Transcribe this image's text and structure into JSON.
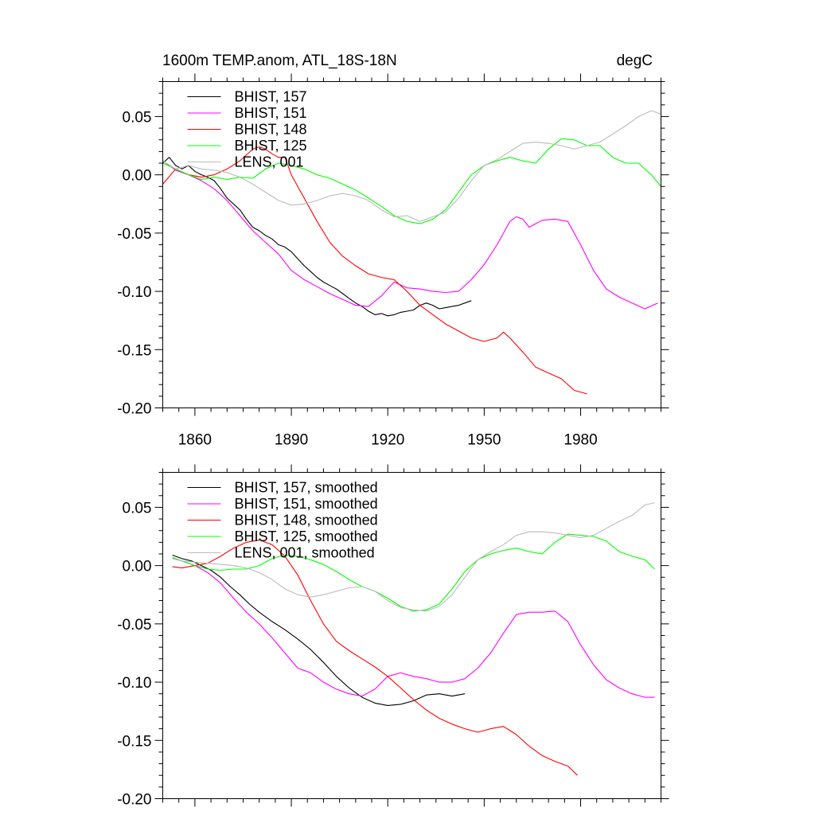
{
  "chart_data": [
    {
      "type": "line",
      "title": "1600m TEMP.anom, ATL_18S-18N",
      "units": "degC",
      "xlim": [
        1850,
        2005
      ],
      "ylim": [
        -0.2,
        0.08
      ],
      "xticks": [
        1860,
        1890,
        1920,
        1950,
        1980
      ],
      "xtick_labels": [
        "1860",
        "1890",
        "1920",
        "1950",
        "1980"
      ],
      "yticks": [
        -0.2,
        -0.15,
        -0.1,
        -0.05,
        0.0,
        0.05
      ],
      "ytick_labels": [
        "-0.20",
        "-0.15",
        "-0.10",
        "-0.05",
        "0.00",
        "0.05"
      ],
      "legend_position": "top-left",
      "series": [
        {
          "name": "BHIST, 157",
          "color": "#000000",
          "x": [
            1850,
            1852,
            1854,
            1856,
            1858,
            1860,
            1862,
            1864,
            1866,
            1868,
            1870,
            1872,
            1874,
            1876,
            1878,
            1880,
            1882,
            1884,
            1886,
            1888,
            1890,
            1892,
            1894,
            1896,
            1898,
            1900,
            1902,
            1904,
            1906,
            1908,
            1910,
            1912,
            1914,
            1916,
            1918,
            1920,
            1922,
            1924,
            1926,
            1928,
            1930,
            1932,
            1934,
            1936,
            1938,
            1940,
            1942,
            1944,
            1946
          ],
          "y": [
            0.01,
            0.015,
            0.008,
            0.005,
            0.008,
            0.003,
            0.0,
            -0.002,
            -0.005,
            -0.012,
            -0.02,
            -0.025,
            -0.03,
            -0.038,
            -0.045,
            -0.048,
            -0.052,
            -0.055,
            -0.06,
            -0.062,
            -0.066,
            -0.072,
            -0.078,
            -0.083,
            -0.088,
            -0.092,
            -0.095,
            -0.098,
            -0.102,
            -0.106,
            -0.11,
            -0.113,
            -0.117,
            -0.12,
            -0.119,
            -0.121,
            -0.12,
            -0.118,
            -0.117,
            -0.116,
            -0.112,
            -0.11,
            -0.112,
            -0.115,
            -0.114,
            -0.113,
            -0.112,
            -0.11,
            -0.108
          ]
        },
        {
          "name": "BHIST, 151",
          "color": "#FF00FF",
          "x": [
            1850,
            1854,
            1858,
            1862,
            1866,
            1870,
            1874,
            1878,
            1882,
            1886,
            1890,
            1894,
            1898,
            1902,
            1906,
            1910,
            1914,
            1918,
            1922,
            1926,
            1930,
            1934,
            1938,
            1942,
            1946,
            1950,
            1954,
            1958,
            1960,
            1962,
            1964,
            1966,
            1968,
            1972,
            1976,
            1980,
            1984,
            1988,
            1992,
            1996,
            2000,
            2004
          ],
          "y": [
            0.012,
            0.004,
            0.0,
            -0.005,
            -0.012,
            -0.022,
            -0.035,
            -0.048,
            -0.058,
            -0.068,
            -0.082,
            -0.09,
            -0.096,
            -0.102,
            -0.107,
            -0.112,
            -0.113,
            -0.104,
            -0.092,
            -0.097,
            -0.098,
            -0.1,
            -0.101,
            -0.1,
            -0.09,
            -0.077,
            -0.06,
            -0.04,
            -0.036,
            -0.038,
            -0.045,
            -0.042,
            -0.039,
            -0.038,
            -0.04,
            -0.06,
            -0.082,
            -0.098,
            -0.105,
            -0.11,
            -0.115,
            -0.11
          ]
        },
        {
          "name": "BHIST, 148",
          "color": "#FF0000",
          "x": [
            1850,
            1854,
            1858,
            1862,
            1866,
            1870,
            1874,
            1878,
            1880,
            1882,
            1884,
            1886,
            1888,
            1890,
            1894,
            1898,
            1902,
            1906,
            1910,
            1914,
            1918,
            1922,
            1926,
            1930,
            1934,
            1938,
            1942,
            1946,
            1950,
            1954,
            1956,
            1958,
            1962,
            1966,
            1970,
            1974,
            1978,
            1982
          ],
          "y": [
            -0.008,
            0.005,
            0.0,
            -0.002,
            0.0,
            0.005,
            0.012,
            0.022,
            0.024,
            0.022,
            0.018,
            0.015,
            0.015,
            0.0,
            -0.02,
            -0.04,
            -0.058,
            -0.07,
            -0.078,
            -0.085,
            -0.088,
            -0.09,
            -0.1,
            -0.112,
            -0.12,
            -0.128,
            -0.134,
            -0.14,
            -0.143,
            -0.14,
            -0.135,
            -0.14,
            -0.152,
            -0.165,
            -0.17,
            -0.175,
            -0.185,
            -0.188
          ]
        },
        {
          "name": "BHIST, 125",
          "color": "#00FF00",
          "x": [
            1850,
            1854,
            1858,
            1862,
            1866,
            1870,
            1874,
            1878,
            1882,
            1886,
            1890,
            1894,
            1898,
            1902,
            1906,
            1910,
            1914,
            1918,
            1922,
            1926,
            1930,
            1934,
            1938,
            1942,
            1946,
            1950,
            1954,
            1958,
            1962,
            1966,
            1970,
            1974,
            1978,
            1982,
            1986,
            1990,
            1994,
            1998,
            2002,
            2005
          ],
          "y": [
            0.01,
            0.005,
            0.0,
            -0.004,
            -0.002,
            -0.004,
            -0.002,
            -0.003,
            0.005,
            0.01,
            0.008,
            0.005,
            0.0,
            -0.003,
            -0.008,
            -0.013,
            -0.02,
            -0.027,
            -0.035,
            -0.04,
            -0.042,
            -0.038,
            -0.03,
            -0.015,
            0.0,
            0.008,
            0.012,
            0.015,
            0.012,
            0.01,
            0.022,
            0.031,
            0.03,
            0.025,
            0.025,
            0.015,
            0.01,
            0.01,
            0.0,
            -0.01
          ]
        },
        {
          "name": "LENS, 001",
          "color": "#BBBBBB",
          "x": [
            1850,
            1854,
            1858,
            1862,
            1866,
            1870,
            1874,
            1878,
            1882,
            1886,
            1890,
            1894,
            1898,
            1902,
            1906,
            1910,
            1914,
            1918,
            1922,
            1926,
            1930,
            1934,
            1938,
            1942,
            1946,
            1950,
            1954,
            1958,
            1962,
            1966,
            1970,
            1974,
            1978,
            1982,
            1986,
            1990,
            1994,
            1998,
            2002,
            2005
          ],
          "y": [
            0.012,
            0.005,
            0.008,
            0.005,
            0.004,
            0.002,
            -0.002,
            -0.008,
            -0.015,
            -0.022,
            -0.026,
            -0.025,
            -0.022,
            -0.018,
            -0.016,
            -0.018,
            -0.022,
            -0.03,
            -0.036,
            -0.035,
            -0.04,
            -0.036,
            -0.032,
            -0.02,
            -0.005,
            0.008,
            0.013,
            0.02,
            0.027,
            0.028,
            0.027,
            0.025,
            0.022,
            0.025,
            0.028,
            0.035,
            0.042,
            0.05,
            0.055,
            0.052
          ]
        }
      ]
    },
    {
      "type": "line",
      "xlim": [
        1850,
        2005
      ],
      "ylim": [
        -0.2,
        0.08
      ],
      "xticks": [
        1860,
        1890,
        1920,
        1950,
        1980
      ],
      "yticks": [
        -0.2,
        -0.15,
        -0.1,
        -0.05,
        0.0,
        0.05
      ],
      "ytick_labels": [
        "-0.20",
        "-0.15",
        "-0.10",
        "-0.05",
        "0.00",
        "0.05"
      ],
      "legend_position": "top-left",
      "series": [
        {
          "name": "BHIST, 157, smoothed",
          "color": "#000000",
          "x": [
            1853,
            1856,
            1859,
            1862,
            1865,
            1868,
            1871,
            1874,
            1877,
            1880,
            1884,
            1888,
            1892,
            1896,
            1900,
            1904,
            1908,
            1912,
            1916,
            1920,
            1924,
            1928,
            1932,
            1936,
            1940,
            1944
          ],
          "y": [
            0.009,
            0.006,
            0.004,
            0.0,
            -0.004,
            -0.01,
            -0.018,
            -0.025,
            -0.033,
            -0.04,
            -0.048,
            -0.055,
            -0.063,
            -0.072,
            -0.083,
            -0.095,
            -0.105,
            -0.113,
            -0.118,
            -0.12,
            -0.119,
            -0.116,
            -0.111,
            -0.11,
            -0.112,
            -0.11
          ]
        },
        {
          "name": "BHIST, 151, smoothed",
          "color": "#FF00FF",
          "x": [
            1853,
            1856,
            1860,
            1864,
            1868,
            1872,
            1876,
            1880,
            1884,
            1888,
            1892,
            1896,
            1900,
            1904,
            1908,
            1912,
            1916,
            1920,
            1924,
            1928,
            1932,
            1936,
            1940,
            1944,
            1948,
            1952,
            1956,
            1960,
            1964,
            1968,
            1972,
            1976,
            1980,
            1984,
            1988,
            1992,
            1996,
            2000,
            2003
          ],
          "y": [
            0.006,
            0.004,
            0.0,
            -0.006,
            -0.015,
            -0.028,
            -0.04,
            -0.05,
            -0.062,
            -0.075,
            -0.088,
            -0.092,
            -0.1,
            -0.106,
            -0.11,
            -0.112,
            -0.106,
            -0.095,
            -0.092,
            -0.095,
            -0.097,
            -0.1,
            -0.1,
            -0.097,
            -0.088,
            -0.075,
            -0.058,
            -0.042,
            -0.04,
            -0.04,
            -0.039,
            -0.048,
            -0.068,
            -0.085,
            -0.098,
            -0.105,
            -0.11,
            -0.113,
            -0.113
          ]
        },
        {
          "name": "BHIST, 148, smoothed",
          "color": "#FF0000",
          "x": [
            1853,
            1856,
            1860,
            1864,
            1868,
            1872,
            1876,
            1880,
            1884,
            1888,
            1892,
            1896,
            1900,
            1904,
            1908,
            1912,
            1916,
            1920,
            1924,
            1928,
            1932,
            1936,
            1940,
            1944,
            1948,
            1952,
            1956,
            1960,
            1964,
            1968,
            1972,
            1976,
            1979
          ],
          "y": [
            -0.001,
            -0.002,
            0.0,
            0.002,
            0.008,
            0.015,
            0.02,
            0.022,
            0.018,
            0.008,
            -0.008,
            -0.03,
            -0.05,
            -0.065,
            -0.073,
            -0.08,
            -0.087,
            -0.095,
            -0.105,
            -0.115,
            -0.124,
            -0.131,
            -0.136,
            -0.14,
            -0.143,
            -0.14,
            -0.138,
            -0.145,
            -0.155,
            -0.163,
            -0.168,
            -0.172,
            -0.18
          ]
        },
        {
          "name": "BHIST, 125, smoothed",
          "color": "#00FF00",
          "x": [
            1853,
            1856,
            1860,
            1864,
            1868,
            1872,
            1876,
            1880,
            1884,
            1888,
            1892,
            1896,
            1900,
            1904,
            1908,
            1912,
            1916,
            1920,
            1924,
            1928,
            1932,
            1936,
            1940,
            1944,
            1948,
            1952,
            1956,
            1960,
            1964,
            1968,
            1972,
            1976,
            1980,
            1984,
            1988,
            1992,
            1996,
            2000,
            2003
          ],
          "y": [
            0.007,
            0.004,
            0.0,
            -0.003,
            -0.004,
            -0.003,
            -0.003,
            0.0,
            0.006,
            0.009,
            0.008,
            0.005,
            0.001,
            -0.005,
            -0.012,
            -0.018,
            -0.022,
            -0.028,
            -0.035,
            -0.039,
            -0.038,
            -0.033,
            -0.02,
            -0.005,
            0.005,
            0.01,
            0.013,
            0.015,
            0.012,
            0.01,
            0.02,
            0.027,
            0.026,
            0.025,
            0.021,
            0.012,
            0.008,
            0.005,
            -0.003
          ]
        },
        {
          "name": "LENS, 001, smoothed",
          "color": "#BBBBBB",
          "x": [
            1853,
            1856,
            1860,
            1864,
            1868,
            1872,
            1876,
            1880,
            1884,
            1888,
            1892,
            1896,
            1900,
            1904,
            1908,
            1912,
            1916,
            1920,
            1924,
            1928,
            1932,
            1936,
            1940,
            1944,
            1948,
            1952,
            1956,
            1960,
            1964,
            1968,
            1972,
            1976,
            1980,
            1984,
            1988,
            1992,
            1996,
            2000,
            2003
          ],
          "y": [
            0.006,
            0.004,
            0.003,
            0.002,
            0.001,
            0.0,
            -0.002,
            -0.006,
            -0.012,
            -0.02,
            -0.025,
            -0.027,
            -0.025,
            -0.022,
            -0.019,
            -0.018,
            -0.022,
            -0.03,
            -0.036,
            -0.038,
            -0.039,
            -0.035,
            -0.025,
            -0.01,
            0.005,
            0.012,
            0.018,
            0.026,
            0.029,
            0.029,
            0.028,
            0.026,
            0.024,
            0.026,
            0.032,
            0.038,
            0.043,
            0.052,
            0.054
          ]
        }
      ]
    }
  ]
}
